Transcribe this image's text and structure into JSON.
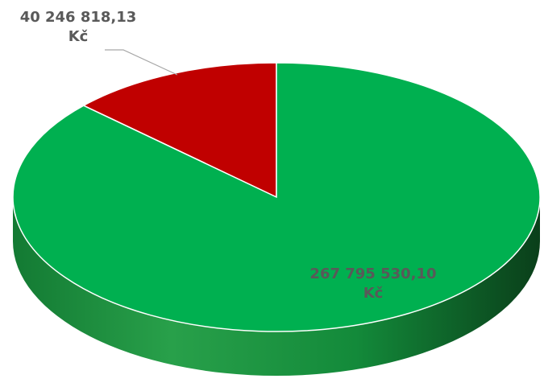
{
  "chart_data": {
    "type": "pie",
    "categories": [
      null,
      null
    ],
    "values": [
      40246818.13,
      267795530.1
    ],
    "value_labels": [
      "40 246 818,13 Kč",
      "267 795 530,10 Kč"
    ],
    "colors": [
      "#c00000",
      "#00b050"
    ]
  }
}
